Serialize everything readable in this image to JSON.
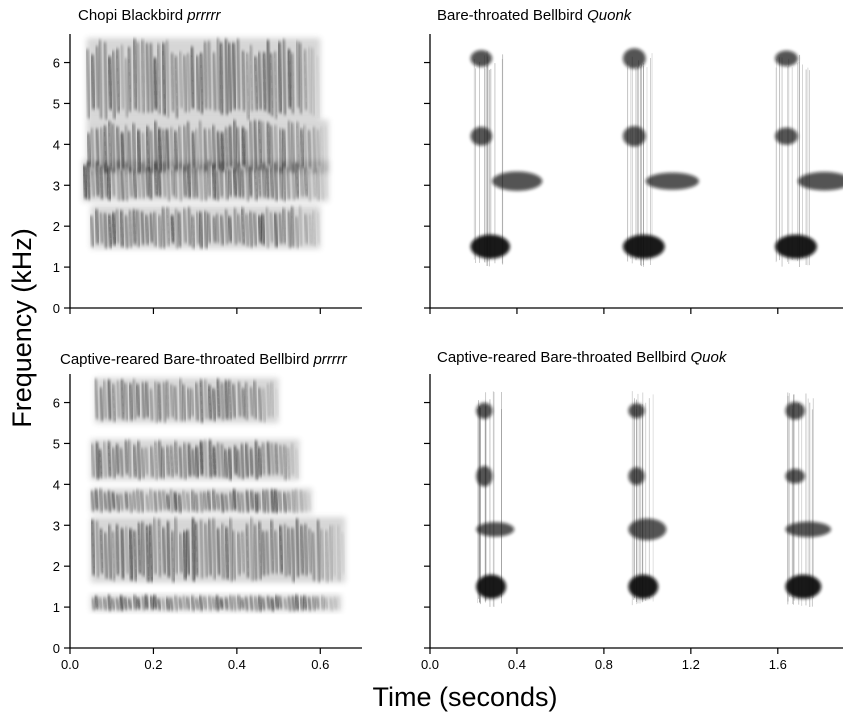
{
  "ylabel": "Frequency (kHz)",
  "xlabel": "Time (seconds)",
  "colors": {
    "ink": "#000000",
    "background": "#ffffff"
  },
  "chart_data": [
    {
      "type": "heatmap",
      "title": "Chopi Blackbird",
      "title_italic": "prrrrr",
      "xlim": [
        0,
        0.7
      ],
      "ylim": [
        0,
        6.6
      ],
      "x_ticks": [
        "0.0",
        "0.2",
        "0.4",
        "0.6"
      ],
      "y_ticks": [
        "0",
        "1",
        "2",
        "3",
        "4",
        "5",
        "6"
      ],
      "sound_bands": [
        {
          "t_start": 0.05,
          "t_end": 0.6,
          "f_low": 1.45,
          "f_high": 2.5
        },
        {
          "t_start": 0.03,
          "t_end": 0.62,
          "f_low": 2.6,
          "f_high": 3.6
        },
        {
          "t_start": 0.04,
          "t_end": 0.62,
          "f_low": 3.3,
          "f_high": 4.6
        },
        {
          "t_start": 0.04,
          "t_end": 0.6,
          "f_low": 4.6,
          "f_high": 6.6
        }
      ]
    },
    {
      "type": "heatmap",
      "title": "Bare-throated Bellbird",
      "title_italic": "Quonk",
      "xlim": [
        0,
        1.9
      ],
      "ylim": [
        0,
        6.6
      ],
      "x_ticks": [],
      "y_ticks": [
        "0",
        "1",
        "2",
        "3",
        "4",
        "5",
        "6"
      ],
      "calls": [
        {
          "t_start": 0.17,
          "t_end": 0.5,
          "bands_khz": [
            1.5,
            3.1,
            4.2,
            6.1
          ]
        },
        {
          "t_start": 0.87,
          "t_end": 1.22,
          "bands_khz": [
            1.5,
            3.1,
            4.2,
            6.1
          ]
        },
        {
          "t_start": 1.57,
          "t_end": 1.92,
          "bands_khz": [
            1.5,
            3.1,
            4.2,
            6.1
          ]
        }
      ]
    },
    {
      "type": "heatmap",
      "title": "Captive-reared Bare-throated Bellbird",
      "title_italic": "prrrrr",
      "xlim": [
        0,
        0.7
      ],
      "ylim": [
        0,
        6.6
      ],
      "x_ticks": [
        "0.0",
        "0.2",
        "0.4",
        "0.6"
      ],
      "y_ticks": [
        "0",
        "1",
        "2",
        "3",
        "4",
        "5",
        "6"
      ],
      "sound_bands": [
        {
          "t_start": 0.05,
          "t_end": 0.65,
          "f_low": 0.9,
          "f_high": 1.3
        },
        {
          "t_start": 0.05,
          "t_end": 0.66,
          "f_low": 1.6,
          "f_high": 3.2
        },
        {
          "t_start": 0.05,
          "t_end": 0.58,
          "f_low": 3.3,
          "f_high": 3.9
        },
        {
          "t_start": 0.05,
          "t_end": 0.55,
          "f_low": 4.1,
          "f_high": 5.1
        },
        {
          "t_start": 0.06,
          "t_end": 0.5,
          "f_low": 5.5,
          "f_high": 6.6
        }
      ]
    },
    {
      "type": "heatmap",
      "title": "Captive-reared Bare-throated Bellbird",
      "title_italic": "Quok",
      "xlim": [
        0,
        1.9
      ],
      "ylim": [
        0,
        6.6
      ],
      "x_ticks": [
        "0.0",
        "0.4",
        "0.8",
        "1.2",
        "1.6"
      ],
      "y_ticks": [],
      "calls": [
        {
          "t_start": 0.2,
          "t_end": 0.45,
          "bands_khz": [
            1.5,
            2.9,
            4.2,
            5.8
          ]
        },
        {
          "t_start": 0.9,
          "t_end": 1.15,
          "bands_khz": [
            1.5,
            2.9,
            4.2,
            5.8
          ]
        },
        {
          "t_start": 1.62,
          "t_end": 1.92,
          "bands_khz": [
            1.5,
            2.9,
            4.2,
            5.8
          ]
        }
      ]
    }
  ]
}
